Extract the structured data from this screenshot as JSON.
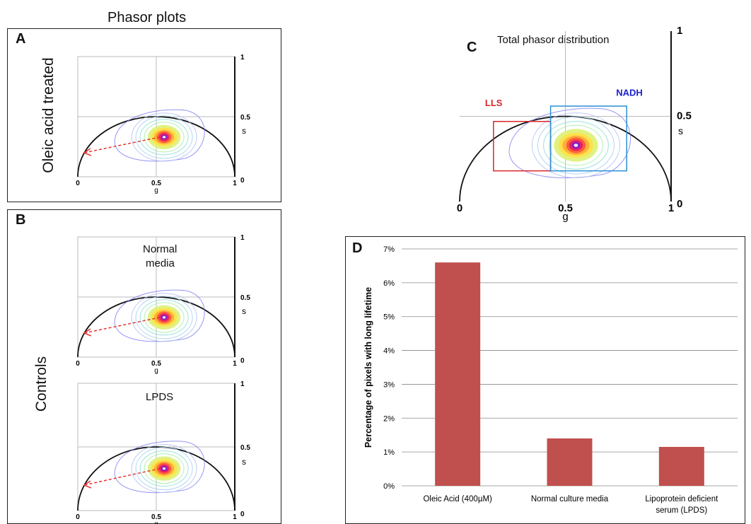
{
  "header": {
    "title": "Phasor plots"
  },
  "panels": {
    "A": {
      "letter": "A",
      "side_label": "Oleic acid  treated"
    },
    "B": {
      "letter": "B",
      "side_label": "Controls",
      "sub1": {
        "title_line1": "Normal",
        "title_line2": "media"
      },
      "sub2": {
        "title": "LPDS"
      }
    },
    "C": {
      "letter": "C",
      "title": "Total phasor distribution",
      "box_llS": {
        "label": "LLS",
        "color": "#d9262b"
      },
      "box_nadh": {
        "label": "NADH",
        "color": "#2a8fd6",
        "label_color": "#1a1fd0"
      }
    },
    "D": {
      "letter": "D"
    }
  },
  "phasor_axes": {
    "g_label": "g",
    "s_label": "s",
    "g_ticks": [
      "0",
      "0.5",
      "1"
    ],
    "s_ticks": [
      "0",
      "0.5",
      "1"
    ]
  },
  "colors": {
    "bar": "#c0504d",
    "arrow": "#e53333",
    "contour": "#7b7bf0",
    "semicircle": "#111111"
  },
  "chart_data": [
    {
      "type": "scatter",
      "title": "",
      "xlabel": "g",
      "ylabel": "s",
      "xlim": [
        0,
        1
      ],
      "ylim": [
        0,
        1
      ],
      "annotation": "phasor cluster centered near g≈0.55, s≈0.33 with arrow toward g≈0.05, s≈0.2"
    },
    {
      "type": "bar",
      "categories": [
        "Oleic Acid (400µM)",
        "Normal culture media",
        "Lipoprotein deficient serum (LPDS)"
      ],
      "category_lines": [
        [
          "Oleic Acid (400µM)"
        ],
        [
          "Normal culture media"
        ],
        [
          "Lipoprotein deficient",
          "serum (LPDS)"
        ]
      ],
      "values": [
        6.6,
        1.4,
        1.15
      ],
      "ylabel": "Percentage of pixels with long lifetime",
      "yticks": [
        "0%",
        "1%",
        "2%",
        "3%",
        "4%",
        "5%",
        "6%",
        "7%"
      ],
      "ylim": [
        0,
        7
      ],
      "grid": true
    }
  ]
}
